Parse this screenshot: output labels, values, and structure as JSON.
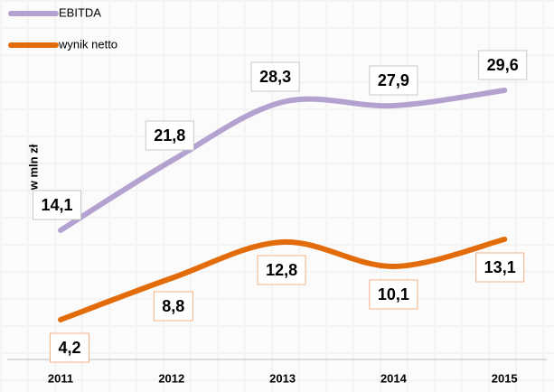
{
  "chart_data": {
    "type": "line",
    "y_label": "w mln zł",
    "categories": [
      "2011",
      "2012",
      "2013",
      "2014",
      "2015"
    ],
    "series": [
      {
        "name": "EBITDA",
        "color": "#b3a2d0",
        "values": [
          14.1,
          21.8,
          28.3,
          27.9,
          29.6
        ],
        "value_labels": [
          "14,1",
          "21,8",
          "28,3",
          "27,9",
          "29,6"
        ]
      },
      {
        "name": "wynik netto",
        "color": "#e36c0a",
        "values": [
          4.2,
          8.8,
          12.8,
          10.1,
          13.1
        ],
        "value_labels": [
          "4,2",
          "8,8",
          "12,8",
          "10,1",
          "13,1"
        ]
      }
    ],
    "ylim": [
      0,
      30
    ],
    "legend": "top-left"
  }
}
